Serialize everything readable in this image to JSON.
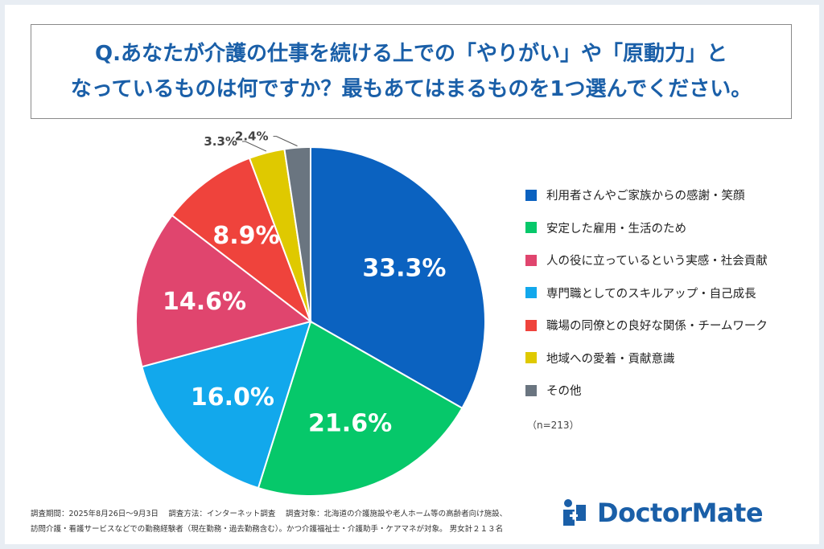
{
  "question": {
    "line1": "Q.あなたが介護の仕事を続ける上での「やりがい」や「原動力」と",
    "line2": "なっているものは何ですか？最もあてはまるものを1つ選んでください。"
  },
  "chart_data": {
    "type": "pie",
    "title": "",
    "unit": "%",
    "slices": [
      {
        "label": "利用者さんやご家族からの感謝・笑顔",
        "value": 33.3,
        "display": "33.3%",
        "color": "#0b62c0"
      },
      {
        "label": "安定した雇用・生活のため",
        "value": 21.6,
        "display": "21.6%",
        "color": "#06c86a"
      },
      {
        "label": "人の役に立っているという実感・社会貢献",
        "value": 14.6,
        "display": "14.6%",
        "color": "#e0456e"
      },
      {
        "label": "専門職としてのスキルアップ・自己成長",
        "value": 16.0,
        "display": "16.0%",
        "color": "#12a8ec"
      },
      {
        "label": "職場の同僚との良好な関係・チームワーク",
        "value": 8.9,
        "display": "8.9%",
        "color": "#ef433c"
      },
      {
        "label": "地域への愛着・貢献意識",
        "value": 3.3,
        "display": "3.3%",
        "color": "#dfc900"
      },
      {
        "label": "その他",
        "value": 2.4,
        "display": "2.4%",
        "color": "#6a7580"
      }
    ],
    "pie_order": [
      0,
      1,
      3,
      2,
      4,
      5,
      6
    ],
    "start": "12 o'clock, clockwise",
    "legend_position": "right"
  },
  "n_note": "（n=213）",
  "footer": {
    "line1": "調査期間：2025年8月26日～9月3日　 調査方法：インターネット調査　 調査対象：北海道の介護施設や老人ホーム等の高齢者向け施設、",
    "line2": "訪問介護・看護サービスなどでの勤務経験者（現在勤務・過去勤務含む）。かつ介護福祉士・介護助手・ケアマネが対象。 男女計２１３名"
  },
  "logo": {
    "text": "DoctorMate",
    "color": "#1a5fa8"
  }
}
